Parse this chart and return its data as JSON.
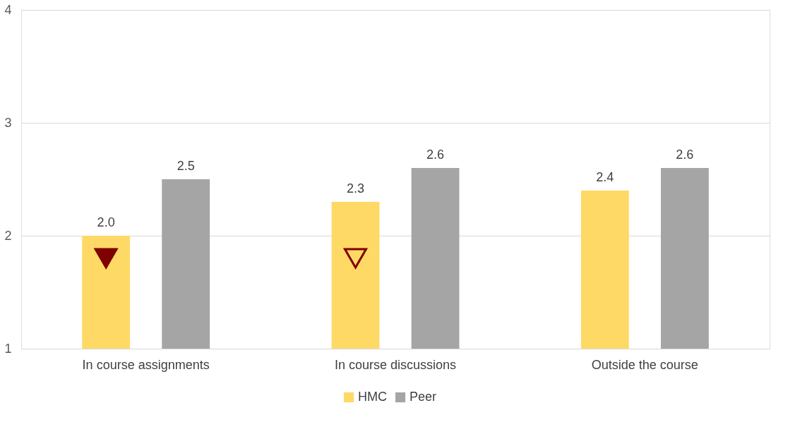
{
  "chart_data": {
    "type": "bar",
    "categories": [
      "In course assignments",
      "In course discussions",
      "Outside the course"
    ],
    "series": [
      {
        "name": "HMC",
        "color": "#ffd966",
        "values": [
          2.0,
          2.3,
          2.4
        ],
        "value_labels": [
          "2.0",
          "2.3",
          "2.4"
        ]
      },
      {
        "name": "Peer",
        "color": "#a5a5a5",
        "values": [
          2.5,
          2.6,
          2.6
        ],
        "value_labels": [
          "2.5",
          "2.6",
          "2.6"
        ]
      },
      {
        "type": "scatter",
        "marker": "triangle",
        "color": "#7f0000",
        "values": [
          1.8,
          null,
          null
        ]
      },
      {
        "type": "scatter",
        "marker": "triangle",
        "line_style": "solid",
        "color": "#7f0000",
        "values": [
          null,
          1.8,
          null
        ]
      }
    ],
    "ylim": [
      1,
      4
    ],
    "yticks": [
      1,
      2,
      3,
      4
    ],
    "grid": "y",
    "legend": "bottom"
  }
}
